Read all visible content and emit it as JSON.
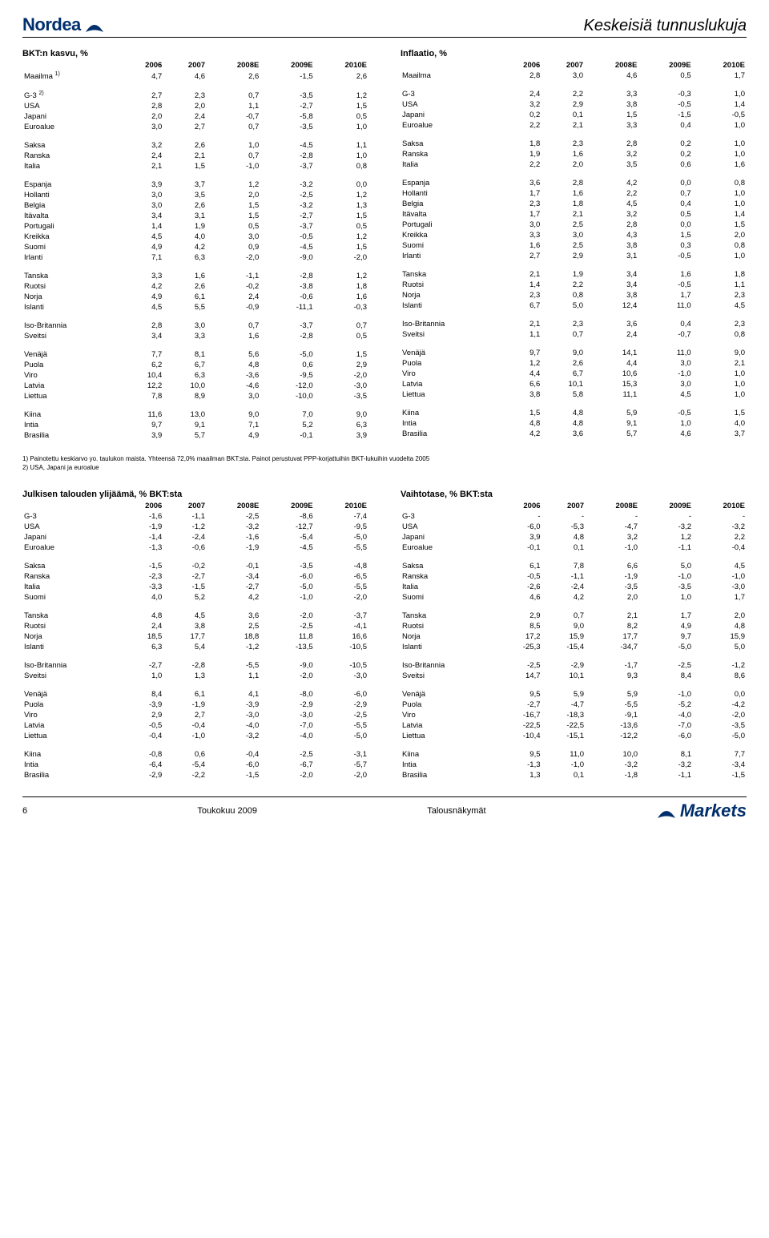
{
  "header": {
    "logo_text": "Nordea",
    "page_title": "Keskeisiä tunnuslukuja"
  },
  "footer": {
    "page_num": "6",
    "date": "Toukokuu 2009",
    "doc_title": "Talousnäkymät",
    "brand": "Markets"
  },
  "footnotes": {
    "f1": "1) Painotettu keskiarvo yo. taulukon maista. Yhteensä 72,0% maailman BKT:sta. Painot perustuvat PPP-korjattuihin BKT-lukuihin vuodelta 2005",
    "f2": "2) USA, Japani ja euroalue"
  },
  "years": [
    "2006",
    "2007",
    "2008E",
    "2009E",
    "2010E"
  ],
  "table_gdp": {
    "title": "BKT:n kasvu, %",
    "groups": [
      [
        {
          "l": "Maailma",
          "sup": "1)",
          "v": [
            "4,7",
            "4,6",
            "2,6",
            "-1,5",
            "2,6"
          ]
        }
      ],
      [
        {
          "l": "G-3",
          "sup": "2)",
          "v": [
            "2,7",
            "2,3",
            "0,7",
            "-3,5",
            "1,2"
          ]
        },
        {
          "l": "USA",
          "v": [
            "2,8",
            "2,0",
            "1,1",
            "-2,7",
            "1,5"
          ]
        },
        {
          "l": "Japani",
          "v": [
            "2,0",
            "2,4",
            "-0,7",
            "-5,8",
            "0,5"
          ]
        },
        {
          "l": "Euroalue",
          "v": [
            "3,0",
            "2,7",
            "0,7",
            "-3,5",
            "1,0"
          ]
        }
      ],
      [
        {
          "l": "Saksa",
          "v": [
            "3,2",
            "2,6",
            "1,0",
            "-4,5",
            "1,1"
          ]
        },
        {
          "l": "Ranska",
          "v": [
            "2,4",
            "2,1",
            "0,7",
            "-2,8",
            "1,0"
          ]
        },
        {
          "l": "Italia",
          "v": [
            "2,1",
            "1,5",
            "-1,0",
            "-3,7",
            "0,8"
          ]
        }
      ],
      [
        {
          "l": "Espanja",
          "v": [
            "3,9",
            "3,7",
            "1,2",
            "-3,2",
            "0,0"
          ]
        },
        {
          "l": "Hollanti",
          "v": [
            "3,0",
            "3,5",
            "2,0",
            "-2,5",
            "1,2"
          ]
        },
        {
          "l": "Belgia",
          "v": [
            "3,0",
            "2,6",
            "1,5",
            "-3,2",
            "1,3"
          ]
        },
        {
          "l": "Itävalta",
          "v": [
            "3,4",
            "3,1",
            "1,5",
            "-2,7",
            "1,5"
          ]
        },
        {
          "l": "Portugali",
          "v": [
            "1,4",
            "1,9",
            "0,5",
            "-3,7",
            "0,5"
          ]
        },
        {
          "l": "Kreikka",
          "v": [
            "4,5",
            "4,0",
            "3,0",
            "-0,5",
            "1,2"
          ]
        },
        {
          "l": "Suomi",
          "v": [
            "4,9",
            "4,2",
            "0,9",
            "-4,5",
            "1,5"
          ]
        },
        {
          "l": "Irlanti",
          "v": [
            "7,1",
            "6,3",
            "-2,0",
            "-9,0",
            "-2,0"
          ]
        }
      ],
      [
        {
          "l": "Tanska",
          "v": [
            "3,3",
            "1,6",
            "-1,1",
            "-2,8",
            "1,2"
          ]
        },
        {
          "l": "Ruotsi",
          "v": [
            "4,2",
            "2,6",
            "-0,2",
            "-3,8",
            "1,8"
          ]
        },
        {
          "l": "Norja",
          "v": [
            "4,9",
            "6,1",
            "2,4",
            "-0,6",
            "1,6"
          ]
        },
        {
          "l": "Islanti",
          "v": [
            "4,5",
            "5,5",
            "-0,9",
            "-11,1",
            "-0,3"
          ]
        }
      ],
      [
        {
          "l": "Iso-Britannia",
          "v": [
            "2,8",
            "3,0",
            "0,7",
            "-3,7",
            "0,7"
          ]
        },
        {
          "l": "Sveitsi",
          "v": [
            "3,4",
            "3,3",
            "1,6",
            "-2,8",
            "0,5"
          ]
        }
      ],
      [
        {
          "l": "Venäjä",
          "v": [
            "7,7",
            "8,1",
            "5,6",
            "-5,0",
            "1,5"
          ]
        },
        {
          "l": "Puola",
          "v": [
            "6,2",
            "6,7",
            "4,8",
            "0,6",
            "2,9"
          ]
        },
        {
          "l": "Viro",
          "v": [
            "10,4",
            "6,3",
            "-3,6",
            "-9,5",
            "-2,0"
          ]
        },
        {
          "l": "Latvia",
          "v": [
            "12,2",
            "10,0",
            "-4,6",
            "-12,0",
            "-3,0"
          ]
        },
        {
          "l": "Liettua",
          "v": [
            "7,8",
            "8,9",
            "3,0",
            "-10,0",
            "-3,5"
          ]
        }
      ],
      [
        {
          "l": "Kiina",
          "v": [
            "11,6",
            "13,0",
            "9,0",
            "7,0",
            "9,0"
          ]
        },
        {
          "l": "Intia",
          "v": [
            "9,7",
            "9,1",
            "7,1",
            "5,2",
            "6,3"
          ]
        },
        {
          "l": "Brasilia",
          "v": [
            "3,9",
            "5,7",
            "4,9",
            "-0,1",
            "3,9"
          ]
        }
      ]
    ]
  },
  "table_inflation": {
    "title": "Inflaatio, %",
    "groups": [
      [
        {
          "l": "Maailma",
          "v": [
            "2,8",
            "3,0",
            "4,6",
            "0,5",
            "1,7"
          ]
        }
      ],
      [
        {
          "l": "G-3",
          "v": [
            "2,4",
            "2,2",
            "3,3",
            "-0,3",
            "1,0"
          ]
        },
        {
          "l": "USA",
          "v": [
            "3,2",
            "2,9",
            "3,8",
            "-0,5",
            "1,4"
          ]
        },
        {
          "l": "Japani",
          "v": [
            "0,2",
            "0,1",
            "1,5",
            "-1,5",
            "-0,5"
          ]
        },
        {
          "l": "Euroalue",
          "v": [
            "2,2",
            "2,1",
            "3,3",
            "0,4",
            "1,0"
          ]
        }
      ],
      [
        {
          "l": "Saksa",
          "v": [
            "1,8",
            "2,3",
            "2,8",
            "0,2",
            "1,0"
          ]
        },
        {
          "l": "Ranska",
          "v": [
            "1,9",
            "1,6",
            "3,2",
            "0,2",
            "1,0"
          ]
        },
        {
          "l": "Italia",
          "v": [
            "2,2",
            "2,0",
            "3,5",
            "0,6",
            "1,6"
          ]
        }
      ],
      [
        {
          "l": "Espanja",
          "v": [
            "3,6",
            "2,8",
            "4,2",
            "0,0",
            "0,8"
          ]
        },
        {
          "l": "Hollanti",
          "v": [
            "1,7",
            "1,6",
            "2,2",
            "0,7",
            "1,0"
          ]
        },
        {
          "l": "Belgia",
          "v": [
            "2,3",
            "1,8",
            "4,5",
            "0,4",
            "1,0"
          ]
        },
        {
          "l": "Itävalta",
          "v": [
            "1,7",
            "2,1",
            "3,2",
            "0,5",
            "1,4"
          ]
        },
        {
          "l": "Portugali",
          "v": [
            "3,0",
            "2,5",
            "2,8",
            "0,0",
            "1,5"
          ]
        },
        {
          "l": "Kreikka",
          "v": [
            "3,3",
            "3,0",
            "4,3",
            "1,5",
            "2,0"
          ]
        },
        {
          "l": "Suomi",
          "v": [
            "1,6",
            "2,5",
            "3,8",
            "0,3",
            "0,8"
          ]
        },
        {
          "l": "Irlanti",
          "v": [
            "2,7",
            "2,9",
            "3,1",
            "-0,5",
            "1,0"
          ]
        }
      ],
      [
        {
          "l": "Tanska",
          "v": [
            "2,1",
            "1,9",
            "3,4",
            "1,6",
            "1,8"
          ]
        },
        {
          "l": "Ruotsi",
          "v": [
            "1,4",
            "2,2",
            "3,4",
            "-0,5",
            "1,1"
          ]
        },
        {
          "l": "Norja",
          "v": [
            "2,3",
            "0,8",
            "3,8",
            "1,7",
            "2,3"
          ]
        },
        {
          "l": "Islanti",
          "v": [
            "6,7",
            "5,0",
            "12,4",
            "11,0",
            "4,5"
          ]
        }
      ],
      [
        {
          "l": "Iso-Britannia",
          "v": [
            "2,1",
            "2,3",
            "3,6",
            "0,4",
            "2,3"
          ]
        },
        {
          "l": "Sveitsi",
          "v": [
            "1,1",
            "0,7",
            "2,4",
            "-0,7",
            "0,8"
          ]
        }
      ],
      [
        {
          "l": "Venäjä",
          "v": [
            "9,7",
            "9,0",
            "14,1",
            "11,0",
            "9,0"
          ]
        },
        {
          "l": "Puola",
          "v": [
            "1,2",
            "2,6",
            "4,4",
            "3,0",
            "2,1"
          ]
        },
        {
          "l": "Viro",
          "v": [
            "4,4",
            "6,7",
            "10,6",
            "-1,0",
            "1,0"
          ]
        },
        {
          "l": "Latvia",
          "v": [
            "6,6",
            "10,1",
            "15,3",
            "3,0",
            "1,0"
          ]
        },
        {
          "l": "Liettua",
          "v": [
            "3,8",
            "5,8",
            "11,1",
            "4,5",
            "1,0"
          ]
        }
      ],
      [
        {
          "l": "Kiina",
          "v": [
            "1,5",
            "4,8",
            "5,9",
            "-0,5",
            "1,5"
          ]
        },
        {
          "l": "Intia",
          "v": [
            "4,8",
            "4,8",
            "9,1",
            "1,0",
            "4,0"
          ]
        },
        {
          "l": "Brasilia",
          "v": [
            "4,2",
            "3,6",
            "5,7",
            "4,6",
            "3,7"
          ]
        }
      ]
    ]
  },
  "table_surplus": {
    "title": "Julkisen talouden ylijäämä, % BKT:sta",
    "groups": [
      [
        {
          "l": "G-3",
          "v": [
            "-1,6",
            "-1,1",
            "-2,5",
            "-8,6",
            "-7,4"
          ]
        },
        {
          "l": "USA",
          "v": [
            "-1,9",
            "-1,2",
            "-3,2",
            "-12,7",
            "-9,5"
          ]
        },
        {
          "l": "Japani",
          "v": [
            "-1,4",
            "-2,4",
            "-1,6",
            "-5,4",
            "-5,0"
          ]
        },
        {
          "l": "Euroalue",
          "v": [
            "-1,3",
            "-0,6",
            "-1,9",
            "-4,5",
            "-5,5"
          ]
        }
      ],
      [
        {
          "l": "Saksa",
          "v": [
            "-1,5",
            "-0,2",
            "-0,1",
            "-3,5",
            "-4,8"
          ]
        },
        {
          "l": "Ranska",
          "v": [
            "-2,3",
            "-2,7",
            "-3,4",
            "-6,0",
            "-6,5"
          ]
        },
        {
          "l": "Italia",
          "v": [
            "-3,3",
            "-1,5",
            "-2,7",
            "-5,0",
            "-5,5"
          ]
        },
        {
          "l": "Suomi",
          "v": [
            "4,0",
            "5,2",
            "4,2",
            "-1,0",
            "-2,0"
          ]
        }
      ],
      [
        {
          "l": "Tanska",
          "v": [
            "4,8",
            "4,5",
            "3,6",
            "-2,0",
            "-3,7"
          ]
        },
        {
          "l": "Ruotsi",
          "v": [
            "2,4",
            "3,8",
            "2,5",
            "-2,5",
            "-4,1"
          ]
        },
        {
          "l": "Norja",
          "v": [
            "18,5",
            "17,7",
            "18,8",
            "11,8",
            "16,6"
          ]
        },
        {
          "l": "Islanti",
          "v": [
            "6,3",
            "5,4",
            "-1,2",
            "-13,5",
            "-10,5"
          ]
        }
      ],
      [
        {
          "l": "Iso-Britannia",
          "v": [
            "-2,7",
            "-2,8",
            "-5,5",
            "-9,0",
            "-10,5"
          ]
        },
        {
          "l": "Sveitsi",
          "v": [
            "1,0",
            "1,3",
            "1,1",
            "-2,0",
            "-3,0"
          ]
        }
      ],
      [
        {
          "l": "Venäjä",
          "v": [
            "8,4",
            "6,1",
            "4,1",
            "-8,0",
            "-6,0"
          ]
        },
        {
          "l": "Puola",
          "v": [
            "-3,9",
            "-1,9",
            "-3,9",
            "-2,9",
            "-2,9"
          ]
        },
        {
          "l": "Viro",
          "v": [
            "2,9",
            "2,7",
            "-3,0",
            "-3,0",
            "-2,5"
          ]
        },
        {
          "l": "Latvia",
          "v": [
            "-0,5",
            "-0,4",
            "-4,0",
            "-7,0",
            "-5,5"
          ]
        },
        {
          "l": "Liettua",
          "v": [
            "-0,4",
            "-1,0",
            "-3,2",
            "-4,0",
            "-5,0"
          ]
        }
      ],
      [
        {
          "l": "Kiina",
          "v": [
            "-0,8",
            "0,6",
            "-0,4",
            "-2,5",
            "-3,1"
          ]
        },
        {
          "l": "Intia",
          "v": [
            "-6,4",
            "-5,4",
            "-6,0",
            "-6,7",
            "-5,7"
          ]
        },
        {
          "l": "Brasilia",
          "v": [
            "-2,9",
            "-2,2",
            "-1,5",
            "-2,0",
            "-2,0"
          ]
        }
      ]
    ]
  },
  "table_current": {
    "title": "Vaihtotase, % BKT:sta",
    "groups": [
      [
        {
          "l": "G-3",
          "v": [
            "-",
            "-",
            "-",
            "-",
            "-"
          ]
        },
        {
          "l": "USA",
          "v": [
            "-6,0",
            "-5,3",
            "-4,7",
            "-3,2",
            "-3,2"
          ]
        },
        {
          "l": "Japani",
          "v": [
            "3,9",
            "4,8",
            "3,2",
            "1,2",
            "2,2"
          ]
        },
        {
          "l": "Euroalue",
          "v": [
            "-0,1",
            "0,1",
            "-1,0",
            "-1,1",
            "-0,4"
          ]
        }
      ],
      [
        {
          "l": "Saksa",
          "v": [
            "6,1",
            "7,8",
            "6,6",
            "5,0",
            "4,5"
          ]
        },
        {
          "l": "Ranska",
          "v": [
            "-0,5",
            "-1,1",
            "-1,9",
            "-1,0",
            "-1,0"
          ]
        },
        {
          "l": "Italia",
          "v": [
            "-2,6",
            "-2,4",
            "-3,5",
            "-3,5",
            "-3,0"
          ]
        },
        {
          "l": "Suomi",
          "v": [
            "4,6",
            "4,2",
            "2,0",
            "1,0",
            "1,7"
          ]
        }
      ],
      [
        {
          "l": "Tanska",
          "v": [
            "2,9",
            "0,7",
            "2,1",
            "1,7",
            "2,0"
          ]
        },
        {
          "l": "Ruotsi",
          "v": [
            "8,5",
            "9,0",
            "8,2",
            "4,9",
            "4,8"
          ]
        },
        {
          "l": "Norja",
          "v": [
            "17,2",
            "15,9",
            "17,7",
            "9,7",
            "15,9"
          ]
        },
        {
          "l": "Islanti",
          "v": [
            "-25,3",
            "-15,4",
            "-34,7",
            "-5,0",
            "5,0"
          ]
        }
      ],
      [
        {
          "l": "Iso-Britannia",
          "v": [
            "-2,5",
            "-2,9",
            "-1,7",
            "-2,5",
            "-1,2"
          ]
        },
        {
          "l": "Sveitsi",
          "v": [
            "14,7",
            "10,1",
            "9,3",
            "8,4",
            "8,6"
          ]
        }
      ],
      [
        {
          "l": "Venäjä",
          "v": [
            "9,5",
            "5,9",
            "5,9",
            "-1,0",
            "0,0"
          ]
        },
        {
          "l": "Puola",
          "v": [
            "-2,7",
            "-4,7",
            "-5,5",
            "-5,2",
            "-4,2"
          ]
        },
        {
          "l": "Viro",
          "v": [
            "-16,7",
            "-18,3",
            "-9,1",
            "-4,0",
            "-2,0"
          ]
        },
        {
          "l": "Latvia",
          "v": [
            "-22,5",
            "-22,5",
            "-13,6",
            "-7,0",
            "-3,5"
          ]
        },
        {
          "l": "Liettua",
          "v": [
            "-10,4",
            "-15,1",
            "-12,2",
            "-6,0",
            "-5,0"
          ]
        }
      ],
      [
        {
          "l": "Kiina",
          "v": [
            "9,5",
            "11,0",
            "10,0",
            "8,1",
            "7,7"
          ]
        },
        {
          "l": "Intia",
          "v": [
            "-1,3",
            "-1,0",
            "-3,2",
            "-3,2",
            "-3,4"
          ]
        },
        {
          "l": "Brasilia",
          "v": [
            "1,3",
            "0,1",
            "-1,8",
            "-1,1",
            "-1,5"
          ]
        }
      ]
    ]
  }
}
